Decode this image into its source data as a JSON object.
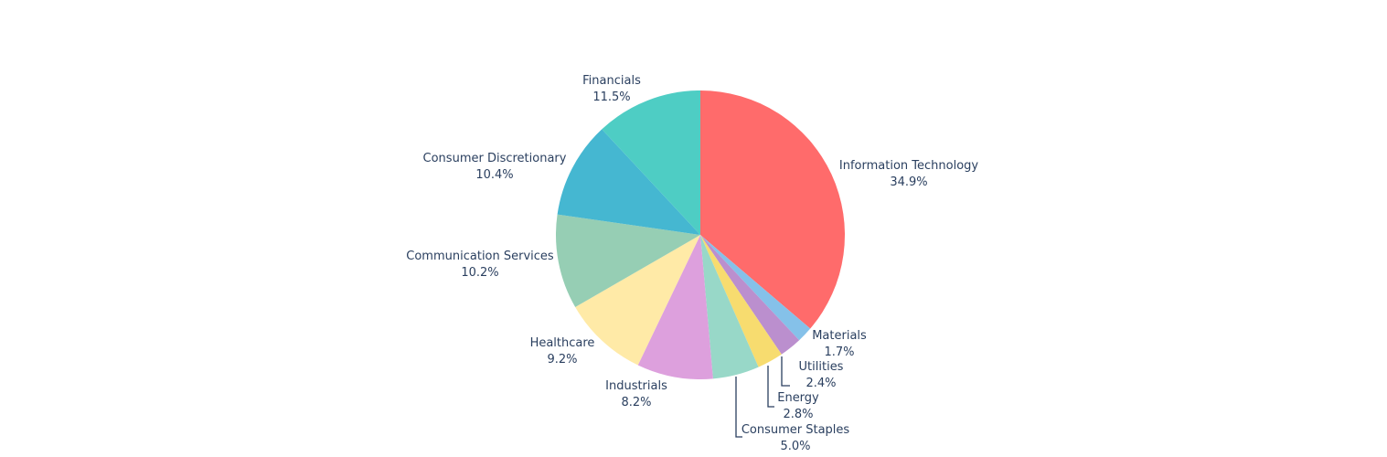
{
  "chart_data": {
    "type": "pie",
    "title": "",
    "legend": "none",
    "text_color": "#2a3f5f",
    "categories": [
      "Information Technology",
      "Materials",
      "Utilities",
      "Energy",
      "Consumer Staples",
      "Industrials",
      "Healthcare",
      "Communication Services",
      "Consumer Discretionary",
      "Financials"
    ],
    "values": [
      34.9,
      1.7,
      2.4,
      2.8,
      5.0,
      8.2,
      9.2,
      10.2,
      10.4,
      11.5
    ],
    "percent_labels": [
      "34.9%",
      "1.7%",
      "2.4%",
      "2.8%",
      "5.0%",
      "8.2%",
      "9.2%",
      "10.2%",
      "10.4%",
      "11.5%"
    ],
    "colors": [
      "#FF6B6B",
      "#85C1E9",
      "#BB8FCE",
      "#F7DC6F",
      "#98D8C8",
      "#DDA0DD",
      "#FFEAA7",
      "#96CEB4",
      "#45B7D1",
      "#4ECDC4"
    ],
    "direction": "clockwise",
    "start": "12 o'clock"
  }
}
